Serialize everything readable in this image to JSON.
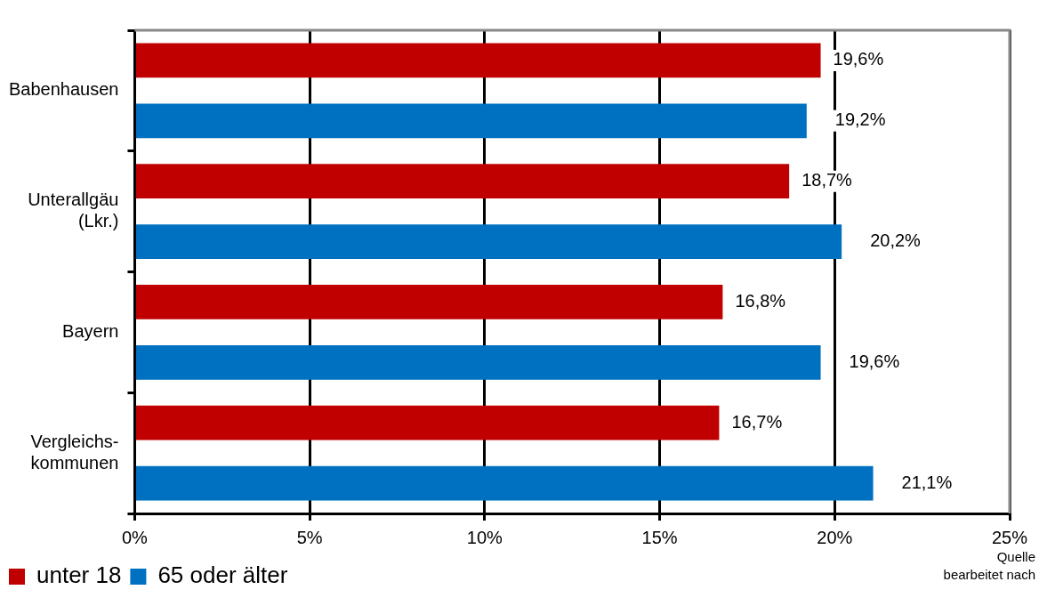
{
  "chart_data": {
    "type": "bar",
    "orientation": "horizontal",
    "categories": [
      "Babenhausen",
      "Unterallgäu\n(Lkr.)",
      "Bayern",
      "Vergleichs-\nkommunen"
    ],
    "series": [
      {
        "name": "unter 18",
        "color": "#c00000",
        "values": [
          19.6,
          18.7,
          16.8,
          16.7
        ],
        "value_labels": [
          "19,6%",
          "18,7%",
          "16,8%",
          "16,7%"
        ]
      },
      {
        "name": "65 oder älter",
        "color": "#0070c0",
        "values": [
          19.2,
          20.2,
          19.6,
          21.1
        ],
        "value_labels": [
          "19,2%",
          "20,2%",
          "19,6%",
          "21,1%"
        ]
      }
    ],
    "xlim": [
      0,
      25
    ],
    "xticks": [
      {
        "value": 0,
        "label": "0%"
      },
      {
        "value": 5,
        "label": "5%"
      },
      {
        "value": 10,
        "label": "10%"
      },
      {
        "value": 15,
        "label": "15%"
      },
      {
        "value": 20,
        "label": "20%"
      },
      {
        "value": 25,
        "label": "25%"
      }
    ],
    "grid": "x",
    "legend": "bottom left",
    "annotations": [
      "Quelle",
      "bearbeitet nach"
    ]
  }
}
